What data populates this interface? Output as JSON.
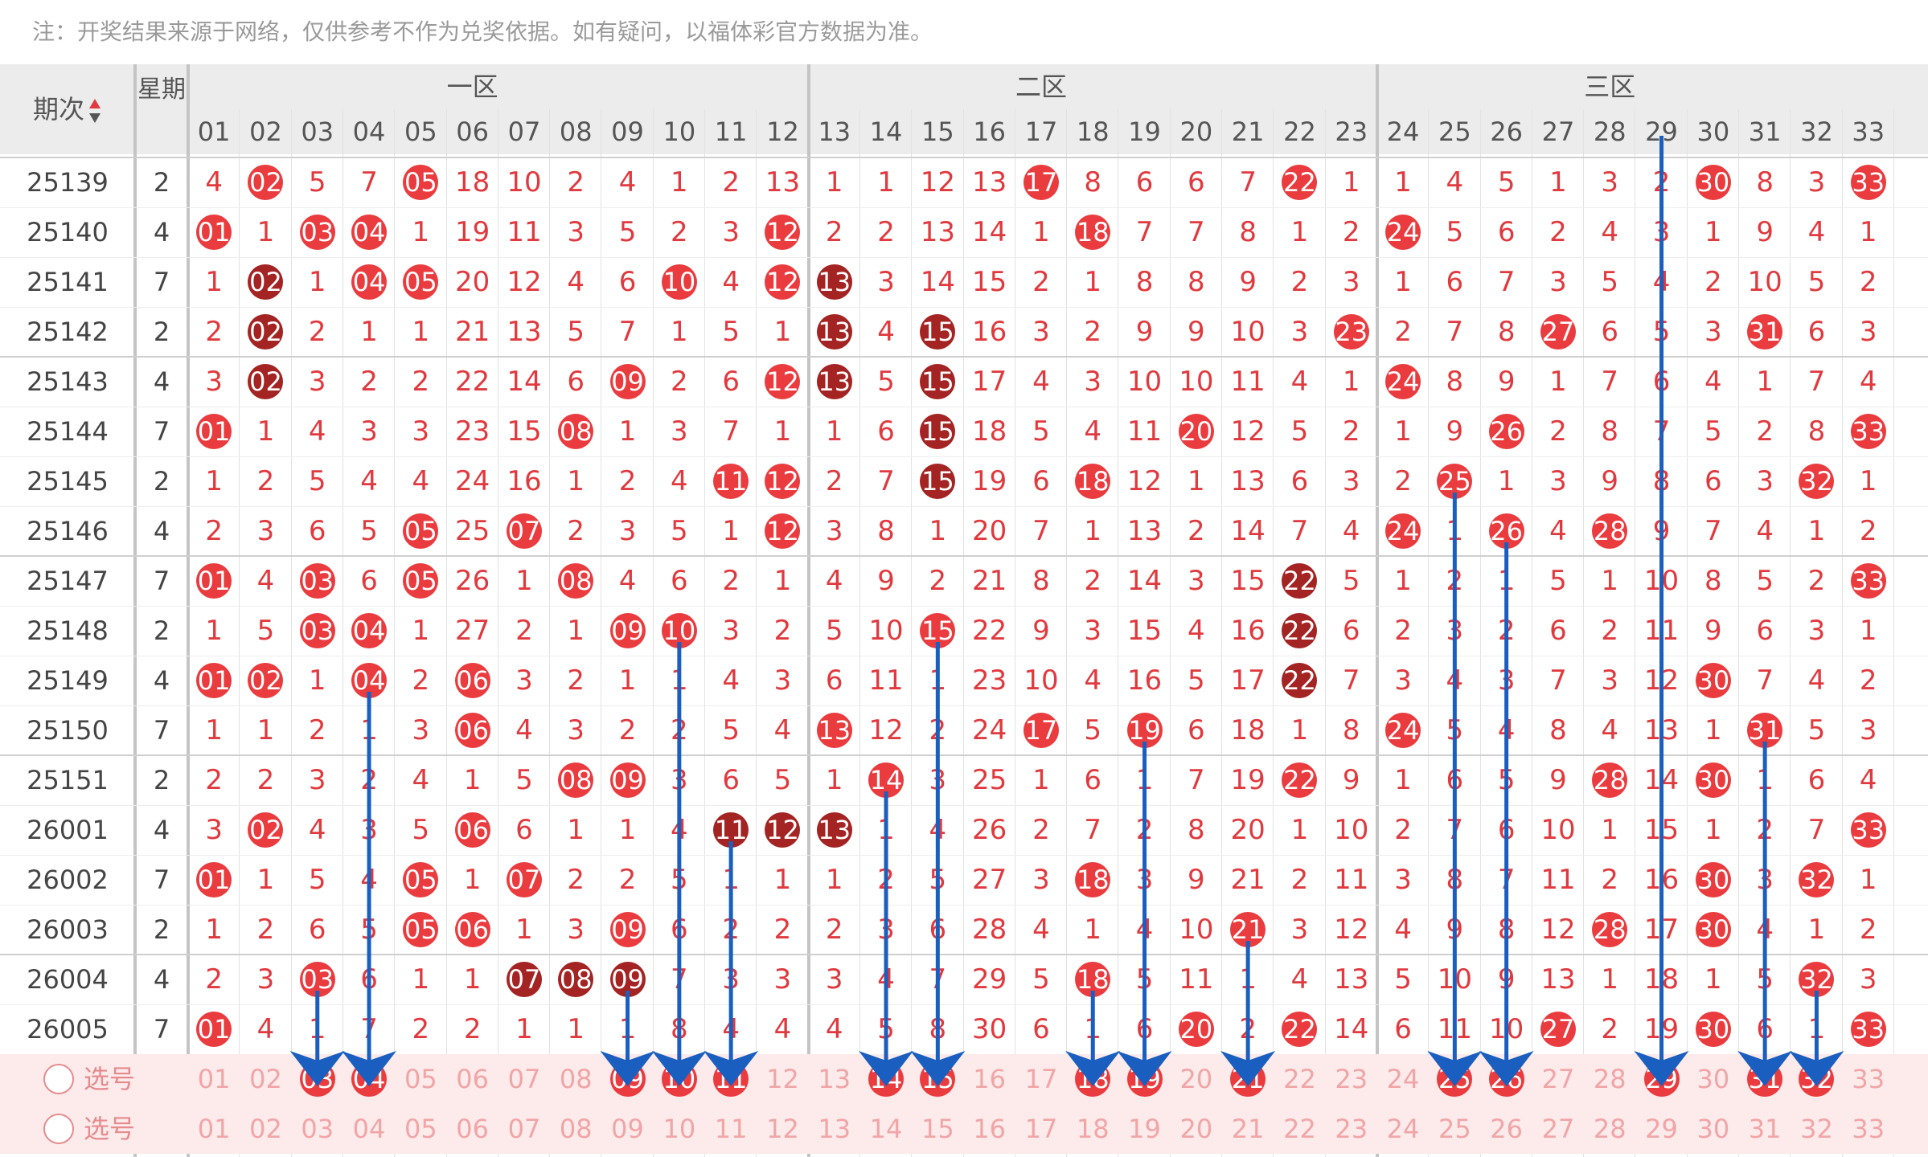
{
  "note": "注：开奖结果来源于网络，仅供参考不作为兑奖依据。如有疑问，以福体彩官方数据为准。",
  "header": {
    "period_label": "期次",
    "sort_icon": "sort-up-down-icon",
    "weekday_label": "星期",
    "zones": [
      "一区",
      "二区",
      "三区"
    ]
  },
  "columns": [
    "01",
    "02",
    "03",
    "04",
    "05",
    "06",
    "07",
    "08",
    "09",
    "10",
    "11",
    "12",
    "13",
    "14",
    "15",
    "16",
    "17",
    "18",
    "19",
    "20",
    "21",
    "22",
    "23",
    "24",
    "25",
    "26",
    "27",
    "28",
    "29",
    "30",
    "31",
    "32",
    "33"
  ],
  "rows": [
    {
      "period": "25139",
      "weekday": "2",
      "cells": [
        "4",
        "02",
        "5",
        "7",
        "05",
        "18",
        "10",
        "2",
        "4",
        "1",
        "2",
        "13",
        "1",
        "1",
        "12",
        "13",
        "17",
        "8",
        "6",
        "6",
        "7",
        "22",
        "1",
        "1",
        "4",
        "5",
        "1",
        "3",
        "2",
        "30",
        "8",
        "3",
        "33"
      ],
      "hits": [
        2,
        5,
        17,
        22,
        30,
        33
      ],
      "dark": []
    },
    {
      "period": "25140",
      "weekday": "4",
      "cells": [
        "01",
        "1",
        "03",
        "04",
        "1",
        "19",
        "11",
        "3",
        "5",
        "2",
        "3",
        "12",
        "2",
        "2",
        "13",
        "14",
        "1",
        "18",
        "7",
        "7",
        "8",
        "1",
        "2",
        "24",
        "5",
        "6",
        "2",
        "4",
        "3",
        "1",
        "9",
        "4",
        "1"
      ],
      "hits": [
        1,
        3,
        4,
        12,
        18,
        24
      ],
      "dark": []
    },
    {
      "period": "25141",
      "weekday": "7",
      "cells": [
        "1",
        "02",
        "1",
        "04",
        "05",
        "20",
        "12",
        "4",
        "6",
        "10",
        "4",
        "12",
        "13",
        "3",
        "14",
        "15",
        "2",
        "1",
        "8",
        "8",
        "9",
        "2",
        "3",
        "1",
        "6",
        "7",
        "3",
        "5",
        "4",
        "2",
        "10",
        "5",
        "2"
      ],
      "hits": [
        2,
        4,
        5,
        10,
        12,
        13
      ],
      "dark": [
        2,
        13
      ]
    },
    {
      "period": "25142",
      "weekday": "2",
      "cells": [
        "2",
        "02",
        "2",
        "1",
        "1",
        "21",
        "13",
        "5",
        "7",
        "1",
        "5",
        "1",
        "13",
        "4",
        "15",
        "16",
        "3",
        "2",
        "9",
        "9",
        "10",
        "3",
        "23",
        "2",
        "7",
        "8",
        "27",
        "6",
        "5",
        "3",
        "31",
        "6",
        "3"
      ],
      "hits": [
        2,
        13,
        15,
        23,
        27,
        31
      ],
      "dark": [
        2,
        13,
        15
      ]
    },
    {
      "period": "25143",
      "weekday": "4",
      "cells": [
        "3",
        "02",
        "3",
        "2",
        "2",
        "22",
        "14",
        "6",
        "09",
        "2",
        "6",
        "12",
        "13",
        "5",
        "15",
        "17",
        "4",
        "3",
        "10",
        "10",
        "11",
        "4",
        "1",
        "24",
        "8",
        "9",
        "1",
        "7",
        "6",
        "4",
        "1",
        "7",
        "4"
      ],
      "hits": [
        2,
        9,
        12,
        13,
        15,
        24
      ],
      "dark": [
        2,
        13,
        15
      ]
    },
    {
      "period": "25144",
      "weekday": "7",
      "cells": [
        "01",
        "1",
        "4",
        "3",
        "3",
        "23",
        "15",
        "08",
        "1",
        "3",
        "7",
        "1",
        "1",
        "6",
        "15",
        "18",
        "5",
        "4",
        "11",
        "20",
        "12",
        "5",
        "2",
        "1",
        "9",
        "26",
        "2",
        "8",
        "7",
        "5",
        "2",
        "8",
        "33"
      ],
      "hits": [
        1,
        8,
        15,
        20,
        26,
        33
      ],
      "dark": [
        15
      ]
    },
    {
      "period": "25145",
      "weekday": "2",
      "cells": [
        "1",
        "2",
        "5",
        "4",
        "4",
        "24",
        "16",
        "1",
        "2",
        "4",
        "11",
        "12",
        "2",
        "7",
        "15",
        "19",
        "6",
        "18",
        "12",
        "1",
        "13",
        "6",
        "3",
        "2",
        "25",
        "1",
        "3",
        "9",
        "8",
        "6",
        "3",
        "32",
        "1"
      ],
      "hits": [
        11,
        12,
        15,
        18,
        25,
        32
      ],
      "dark": [
        15
      ]
    },
    {
      "period": "25146",
      "weekday": "4",
      "cells": [
        "2",
        "3",
        "6",
        "5",
        "05",
        "25",
        "07",
        "2",
        "3",
        "5",
        "1",
        "12",
        "3",
        "8",
        "1",
        "20",
        "7",
        "1",
        "13",
        "2",
        "14",
        "7",
        "4",
        "24",
        "1",
        "26",
        "4",
        "28",
        "9",
        "7",
        "4",
        "1",
        "2"
      ],
      "hits": [
        5,
        7,
        12,
        24,
        26,
        28
      ],
      "dark": []
    },
    {
      "period": "25147",
      "weekday": "7",
      "cells": [
        "01",
        "4",
        "03",
        "6",
        "05",
        "26",
        "1",
        "08",
        "4",
        "6",
        "2",
        "1",
        "4",
        "9",
        "2",
        "21",
        "8",
        "2",
        "14",
        "3",
        "15",
        "22",
        "5",
        "1",
        "2",
        "1",
        "5",
        "1",
        "10",
        "8",
        "5",
        "2",
        "33"
      ],
      "hits": [
        1,
        3,
        5,
        8,
        22,
        33
      ],
      "dark": [
        22
      ]
    },
    {
      "period": "25148",
      "weekday": "2",
      "cells": [
        "1",
        "5",
        "03",
        "04",
        "1",
        "27",
        "2",
        "1",
        "09",
        "10",
        "3",
        "2",
        "5",
        "10",
        "15",
        "22",
        "9",
        "3",
        "15",
        "4",
        "16",
        "22",
        "6",
        "2",
        "3",
        "2",
        "6",
        "2",
        "11",
        "9",
        "6",
        "3",
        "1"
      ],
      "hits": [
        3,
        4,
        9,
        10,
        15,
        22
      ],
      "dark": [
        22
      ]
    },
    {
      "period": "25149",
      "weekday": "4",
      "cells": [
        "01",
        "02",
        "1",
        "04",
        "2",
        "06",
        "3",
        "2",
        "1",
        "1",
        "4",
        "3",
        "6",
        "11",
        "1",
        "23",
        "10",
        "4",
        "16",
        "5",
        "17",
        "22",
        "7",
        "3",
        "4",
        "3",
        "7",
        "3",
        "12",
        "30",
        "7",
        "4",
        "2"
      ],
      "hits": [
        1,
        2,
        4,
        6,
        22,
        30
      ],
      "dark": [
        22
      ]
    },
    {
      "period": "25150",
      "weekday": "7",
      "cells": [
        "1",
        "1",
        "2",
        "1",
        "3",
        "06",
        "4",
        "3",
        "2",
        "2",
        "5",
        "4",
        "13",
        "12",
        "2",
        "24",
        "17",
        "5",
        "19",
        "6",
        "18",
        "1",
        "8",
        "24",
        "5",
        "4",
        "8",
        "4",
        "13",
        "1",
        "31",
        "5",
        "3"
      ],
      "hits": [
        6,
        13,
        17,
        19,
        24,
        31
      ],
      "dark": []
    },
    {
      "period": "25151",
      "weekday": "2",
      "cells": [
        "2",
        "2",
        "3",
        "2",
        "4",
        "1",
        "5",
        "08",
        "09",
        "3",
        "6",
        "5",
        "1",
        "14",
        "3",
        "25",
        "1",
        "6",
        "1",
        "7",
        "19",
        "22",
        "9",
        "1",
        "6",
        "5",
        "9",
        "28",
        "14",
        "30",
        "1",
        "6",
        "4"
      ],
      "hits": [
        8,
        9,
        14,
        22,
        28,
        30
      ],
      "dark": []
    },
    {
      "period": "26001",
      "weekday": "4",
      "cells": [
        "3",
        "02",
        "4",
        "3",
        "5",
        "06",
        "6",
        "1",
        "1",
        "4",
        "11",
        "12",
        "13",
        "1",
        "4",
        "26",
        "2",
        "7",
        "2",
        "8",
        "20",
        "1",
        "10",
        "2",
        "7",
        "6",
        "10",
        "1",
        "15",
        "1",
        "2",
        "7",
        "33"
      ],
      "hits": [
        2,
        6,
        11,
        12,
        13,
        33
      ],
      "dark": [
        11,
        12,
        13
      ]
    },
    {
      "period": "26002",
      "weekday": "7",
      "cells": [
        "01",
        "1",
        "5",
        "4",
        "05",
        "1",
        "07",
        "2",
        "2",
        "5",
        "1",
        "1",
        "1",
        "2",
        "5",
        "27",
        "3",
        "18",
        "3",
        "9",
        "21",
        "2",
        "11",
        "3",
        "8",
        "7",
        "11",
        "2",
        "16",
        "30",
        "3",
        "32",
        "1"
      ],
      "hits": [
        1,
        5,
        7,
        18,
        30,
        32
      ],
      "dark": []
    },
    {
      "period": "26003",
      "weekday": "2",
      "cells": [
        "1",
        "2",
        "6",
        "5",
        "05",
        "06",
        "1",
        "3",
        "09",
        "6",
        "2",
        "2",
        "2",
        "3",
        "6",
        "28",
        "4",
        "1",
        "4",
        "10",
        "21",
        "3",
        "12",
        "4",
        "9",
        "8",
        "12",
        "28",
        "17",
        "30",
        "4",
        "1",
        "2"
      ],
      "hits": [
        5,
        6,
        9,
        21,
        28,
        30
      ],
      "dark": []
    },
    {
      "period": "26004",
      "weekday": "4",
      "cells": [
        "2",
        "3",
        "03",
        "6",
        "1",
        "1",
        "07",
        "08",
        "09",
        "7",
        "3",
        "3",
        "3",
        "4",
        "7",
        "29",
        "5",
        "18",
        "5",
        "11",
        "1",
        "4",
        "13",
        "5",
        "10",
        "9",
        "13",
        "1",
        "18",
        "1",
        "5",
        "32",
        "3"
      ],
      "hits": [
        3,
        7,
        8,
        9,
        18,
        32
      ],
      "dark": [
        7,
        8,
        9
      ]
    },
    {
      "period": "26005",
      "weekday": "7",
      "cells": [
        "01",
        "4",
        "1",
        "7",
        "2",
        "2",
        "1",
        "1",
        "1",
        "8",
        "4",
        "4",
        "4",
        "5",
        "8",
        "30",
        "6",
        "1",
        "6",
        "20",
        "2",
        "22",
        "14",
        "6",
        "11",
        "10",
        "27",
        "2",
        "19",
        "30",
        "6",
        "1",
        "33"
      ],
      "hits": [
        1,
        20,
        22,
        27,
        30,
        33
      ],
      "dark": []
    }
  ],
  "selection_rows": [
    {
      "label": "选号",
      "radio_icon": "radio-circle-icon",
      "selected": [
        3,
        4,
        9,
        10,
        11,
        14,
        15,
        18,
        19,
        21,
        25,
        26,
        29,
        31,
        32
      ]
    },
    {
      "label": "选号",
      "radio_icon": "radio-circle-icon",
      "selected": []
    }
  ],
  "arrows": [
    {
      "column": 3,
      "from_period": "26004"
    },
    {
      "column": 4,
      "from_period": "25149"
    },
    {
      "column": 9,
      "from_period": "26004"
    },
    {
      "column": 10,
      "from_period": "25148"
    },
    {
      "column": 11,
      "from_period": "26001"
    },
    {
      "column": 14,
      "from_period": "25151"
    },
    {
      "column": 15,
      "from_period": "25148"
    },
    {
      "column": 18,
      "from_period": "26004"
    },
    {
      "column": 19,
      "from_period": "25150"
    },
    {
      "column": 21,
      "from_period": "26003"
    },
    {
      "column": 25,
      "from_period": "25145"
    },
    {
      "column": 26,
      "from_period": "25146"
    },
    {
      "column": 29,
      "from_period": "25139"
    },
    {
      "column": 31,
      "from_period": "25150"
    },
    {
      "column": 32,
      "from_period": "26004"
    }
  ],
  "colors": {
    "hit": "#ea3b3f",
    "repeat": "#a42323",
    "arrow": "#1a5fbf",
    "text": "#e0393e"
  }
}
